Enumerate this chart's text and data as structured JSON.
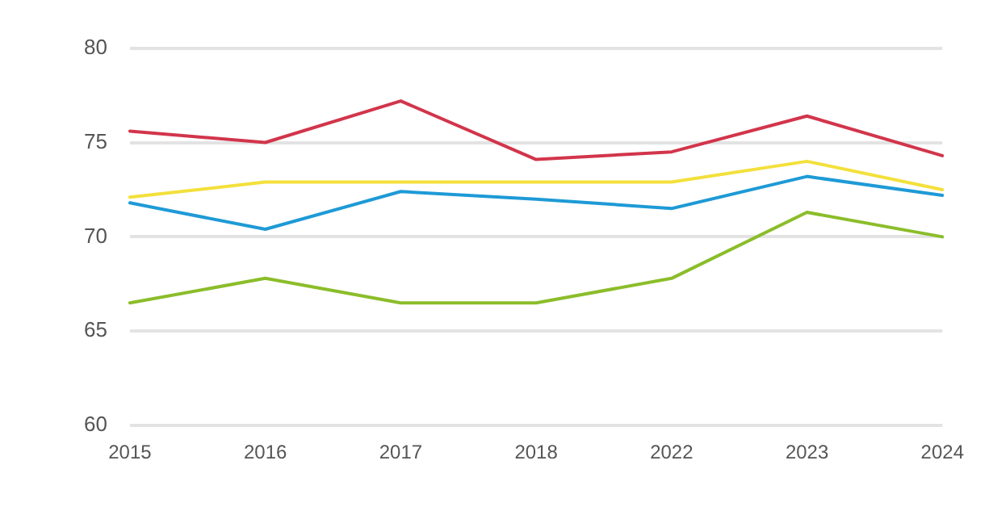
{
  "chart_data": {
    "type": "line",
    "categories": [
      "2015",
      "2016",
      "2017",
      "2018",
      "2022",
      "2023",
      "2024"
    ],
    "series": [
      {
        "color": "#d2354b",
        "values": [
          75.6,
          75.0,
          77.2,
          74.1,
          74.5,
          76.4,
          74.3
        ]
      },
      {
        "color": "#f3e03b",
        "values": [
          72.1,
          72.9,
          72.9,
          72.9,
          72.9,
          74.0,
          72.5
        ]
      },
      {
        "color": "#1e9ad6",
        "values": [
          71.8,
          70.4,
          72.4,
          72.0,
          71.5,
          73.2,
          72.2
        ]
      },
      {
        "color": "#8bbd2a",
        "values": [
          66.5,
          67.8,
          66.5,
          66.5,
          67.8,
          71.3,
          70.0
        ]
      }
    ],
    "ylim": [
      60,
      80
    ],
    "yticks": [
      60,
      65,
      70,
      75,
      80
    ],
    "grid": "y",
    "legend": false,
    "marker": "none",
    "line_style": "solid"
  }
}
